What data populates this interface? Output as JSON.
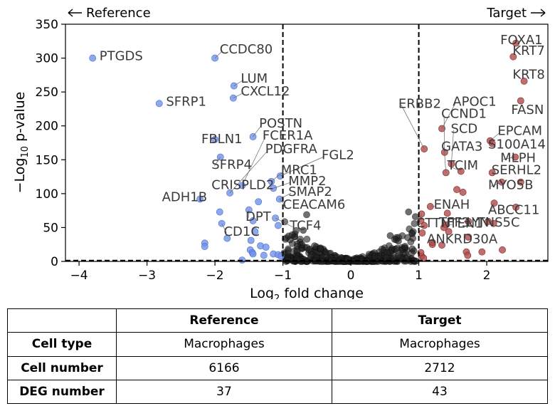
{
  "chart_data": {
    "type": "scatter",
    "xlabel_html": "Log<sub>2</sub> fold change",
    "xlabel_main": "Log",
    "xlabel_sub": "2",
    "xlabel_rest": " fold change",
    "ylabel_pre": "−Log",
    "ylabel_sub": "10",
    "ylabel_rest": " p-value",
    "xlim": [
      -4.2,
      2.9
    ],
    "ylim": [
      0,
      350
    ],
    "xticks": [
      -4,
      -3,
      -2,
      -1,
      0,
      1,
      2
    ],
    "xtick_labels": [
      "−4",
      "−3",
      "−2",
      "−1",
      "0",
      "1",
      "2"
    ],
    "yticks": [
      0,
      50,
      100,
      150,
      200,
      250,
      300,
      350
    ],
    "ytick_labels": [
      "0",
      "50",
      "100",
      "150",
      "200",
      "250",
      "300",
      "350"
    ],
    "thresholds": {
      "log2fc": [
        -1,
        1
      ],
      "pvalue_line": 1.3
    },
    "direction_left": "Reference",
    "direction_right": "Target",
    "colors": {
      "down": "#6f8fe8",
      "up": "#b04a4a",
      "ns": "#222222",
      "label": "#3a3a3a"
    },
    "down_points": [
      [
        -3.8,
        300
      ],
      [
        -2.82,
        233
      ],
      [
        -2.0,
        300
      ],
      [
        -1.72,
        259
      ],
      [
        -1.73,
        241
      ],
      [
        -1.44,
        184
      ],
      [
        -2.0,
        180
      ],
      [
        -1.92,
        154
      ],
      [
        -1.6,
        112
      ],
      [
        -1.78,
        101
      ],
      [
        -2.22,
        92
      ],
      [
        -1.36,
        88
      ],
      [
        -1.17,
        118
      ],
      [
        -1.14,
        108
      ],
      [
        -1.04,
        126
      ],
      [
        -1.05,
        92
      ],
      [
        -1.5,
        76
      ],
      [
        -1.44,
        60
      ],
      [
        -1.11,
        64
      ],
      [
        -1.07,
        53
      ],
      [
        -1.93,
        73
      ],
      [
        -1.9,
        56
      ],
      [
        -1.82,
        34
      ],
      [
        -1.41,
        44
      ],
      [
        -1.47,
        31
      ],
      [
        -2.15,
        27
      ],
      [
        -2.15,
        22
      ],
      [
        -1.33,
        23
      ],
      [
        -1.25,
        21
      ],
      [
        -1.48,
        17
      ],
      [
        -1.45,
        13
      ],
      [
        -1.44,
        11
      ],
      [
        -1.28,
        9
      ],
      [
        -1.14,
        11
      ],
      [
        -1.07,
        10
      ],
      [
        -1.03,
        8
      ],
      [
        -1.6,
        2
      ]
    ],
    "up_points": [
      [
        2.43,
        322
      ],
      [
        2.39,
        302
      ],
      [
        2.55,
        266
      ],
      [
        2.5,
        237
      ],
      [
        1.08,
        166
      ],
      [
        1.34,
        196
      ],
      [
        1.38,
        161
      ],
      [
        1.48,
        144
      ],
      [
        1.4,
        131
      ],
      [
        1.62,
        133
      ],
      [
        1.56,
        106
      ],
      [
        1.65,
        102
      ],
      [
        2.05,
        178
      ],
      [
        2.08,
        174
      ],
      [
        2.42,
        154
      ],
      [
        2.08,
        131
      ],
      [
        2.22,
        117
      ],
      [
        2.5,
        117
      ],
      [
        2.11,
        86
      ],
      [
        2.43,
        80
      ],
      [
        1.17,
        81
      ],
      [
        1.42,
        71
      ],
      [
        1.04,
        70
      ],
      [
        1.03,
        60
      ],
      [
        1.08,
        53
      ],
      [
        1.4,
        54
      ],
      [
        1.44,
        44
      ],
      [
        1.37,
        50
      ],
      [
        1.73,
        59
      ],
      [
        2.02,
        59
      ],
      [
        2.1,
        56
      ],
      [
        1.73,
        36
      ],
      [
        1.05,
        42
      ],
      [
        1.2,
        25
      ],
      [
        1.2,
        28
      ],
      [
        1.34,
        24
      ],
      [
        1.7,
        14
      ],
      [
        1.72,
        9
      ],
      [
        1.93,
        14
      ],
      [
        2.23,
        17
      ],
      [
        1.04,
        8
      ],
      [
        1.07,
        5
      ],
      [
        1.03,
        13
      ]
    ],
    "labels": [
      {
        "text": "PTGDS",
        "x": -3.8,
        "y": 300,
        "lx": -3.7,
        "ly": 303,
        "leader": false
      },
      {
        "text": "SFRP1",
        "x": -2.82,
        "y": 233,
        "lx": -2.72,
        "ly": 236,
        "leader": false
      },
      {
        "text": "CCDC80",
        "x": -2.0,
        "y": 300,
        "lx": -1.93,
        "ly": 313,
        "leader": true
      },
      {
        "text": "LUM",
        "x": -1.72,
        "y": 259,
        "lx": -1.62,
        "ly": 270,
        "leader": true
      },
      {
        "text": "CXCL12",
        "x": -1.73,
        "y": 241,
        "lx": -1.62,
        "ly": 251,
        "leader": true
      },
      {
        "text": "POSTN",
        "x": -1.44,
        "y": 184,
        "lx": -1.35,
        "ly": 204,
        "leader": true
      },
      {
        "text": "FCER1A",
        "x": -1.6,
        "y": 112,
        "lx": -1.3,
        "ly": 186,
        "leader": true
      },
      {
        "text": "FBLN1",
        "x": -2.0,
        "y": 180,
        "lx": -2.2,
        "ly": 181,
        "leader": false
      },
      {
        "text": "PDGFRA",
        "x": -1.78,
        "y": 101,
        "lx": -1.26,
        "ly": 166,
        "leader": true
      },
      {
        "text": "FGL2",
        "x": -1.04,
        "y": 126,
        "lx": -0.43,
        "ly": 157,
        "leader": true
      },
      {
        "text": "SFRP4",
        "x": -1.92,
        "y": 154,
        "lx": -2.05,
        "ly": 143,
        "leader": true
      },
      {
        "text": "MRC1",
        "x": -1.17,
        "y": 118,
        "lx": -1.03,
        "ly": 135,
        "leader": true
      },
      {
        "text": "CRISPLD2",
        "x": -1.6,
        "y": 112,
        "lx": -2.05,
        "ly": 113,
        "leader": false
      },
      {
        "text": "MMP2",
        "x": -1.14,
        "y": 108,
        "lx": -0.92,
        "ly": 119,
        "leader": true
      },
      {
        "text": "SMAP2",
        "x": -1.05,
        "y": 92,
        "lx": -0.92,
        "ly": 103,
        "leader": true
      },
      {
        "text": "ADH1B",
        "x": -2.22,
        "y": 92,
        "lx": -2.78,
        "ly": 95,
        "leader": false
      },
      {
        "text": "CEACAM6",
        "x": -1.05,
        "y": 92,
        "lx": -1.0,
        "ly": 84,
        "leader": true
      },
      {
        "text": "DPT",
        "x": -1.5,
        "y": 76,
        "lx": -1.55,
        "ly": 66,
        "leader": true
      },
      {
        "text": "TCF4",
        "x": -1.11,
        "y": 64,
        "lx": -0.9,
        "ly": 53,
        "leader": true
      },
      {
        "text": "CD1C",
        "x": -1.9,
        "y": 56,
        "lx": -1.87,
        "ly": 44,
        "leader": true
      },
      {
        "text": "FOXA1",
        "x": 2.43,
        "y": 322,
        "lx": 2.2,
        "ly": 327,
        "leader": false
      },
      {
        "text": "KRT7",
        "x": 2.39,
        "y": 302,
        "lx": 2.38,
        "ly": 311,
        "leader": false
      },
      {
        "text": "KRT8",
        "x": 2.55,
        "y": 266,
        "lx": 2.38,
        "ly": 276,
        "leader": false
      },
      {
        "text": "FASN",
        "x": 2.5,
        "y": 237,
        "lx": 2.36,
        "ly": 224,
        "leader": false
      },
      {
        "text": "ERBB2",
        "x": 1.08,
        "y": 166,
        "lx": 0.7,
        "ly": 233,
        "leader": true
      },
      {
        "text": "APOC1",
        "x": 1.34,
        "y": 196,
        "lx": 1.5,
        "ly": 236,
        "leader": true
      },
      {
        "text": "CCND1",
        "x": 1.38,
        "y": 161,
        "lx": 1.33,
        "ly": 218,
        "leader": true
      },
      {
        "text": "SCD",
        "x": 1.48,
        "y": 144,
        "lx": 1.47,
        "ly": 196,
        "leader": true
      },
      {
        "text": "EPCAM",
        "x": 2.05,
        "y": 178,
        "lx": 2.16,
        "ly": 193,
        "leader": true
      },
      {
        "text": "S100A14",
        "x": 2.08,
        "y": 174,
        "lx": 2.02,
        "ly": 173,
        "leader": true
      },
      {
        "text": "GATA3",
        "x": 1.4,
        "y": 131,
        "lx": 1.33,
        "ly": 170,
        "leader": true
      },
      {
        "text": "MLPH",
        "x": 2.42,
        "y": 154,
        "lx": 2.2,
        "ly": 153,
        "leader": true
      },
      {
        "text": "TCIM",
        "x": 1.62,
        "y": 133,
        "lx": 1.42,
        "ly": 142,
        "leader": true
      },
      {
        "text": "SERHL2",
        "x": 2.08,
        "y": 131,
        "lx": 2.07,
        "ly": 135,
        "leader": true
      },
      {
        "text": "MYO5B",
        "x": 2.22,
        "y": 117,
        "lx": 2.02,
        "ly": 113,
        "leader": true
      },
      {
        "text": "ENAH",
        "x": 1.17,
        "y": 81,
        "lx": 1.22,
        "ly": 84,
        "leader": true
      },
      {
        "text": "ABCC11",
        "x": 2.11,
        "y": 86,
        "lx": 2.02,
        "ly": 76,
        "leader": true
      },
      {
        "text": "CTTN",
        "x": 1.04,
        "y": 70,
        "lx": 0.96,
        "ly": 57,
        "leader": true
      },
      {
        "text": "TEN1",
        "x": 1.4,
        "y": 54,
        "lx": 1.45,
        "ly": 56,
        "leader": true
      },
      {
        "text": "TFF3",
        "x": 1.73,
        "y": 59,
        "lx": 1.3,
        "ly": 58,
        "leader": false
      },
      {
        "text": "LYN",
        "x": 2.02,
        "y": 59,
        "lx": 1.7,
        "ly": 58,
        "leader": false
      },
      {
        "text": "TNS5C",
        "x": 2.1,
        "y": 56,
        "lx": 1.86,
        "ly": 58,
        "leader": false
      },
      {
        "text": "ANKRD30A",
        "x": 1.2,
        "y": 28,
        "lx": 1.12,
        "ly": 33,
        "leader": true
      }
    ]
  },
  "table": {
    "headers": [
      "",
      "Reference",
      "Target"
    ],
    "rows": [
      {
        "label": "Cell type",
        "ref": "Macrophages",
        "target": "Macrophages"
      },
      {
        "label": "Cell number",
        "ref": "6166",
        "target": "2712"
      },
      {
        "label": "DEG number",
        "ref": "37",
        "target": "43"
      }
    ]
  }
}
